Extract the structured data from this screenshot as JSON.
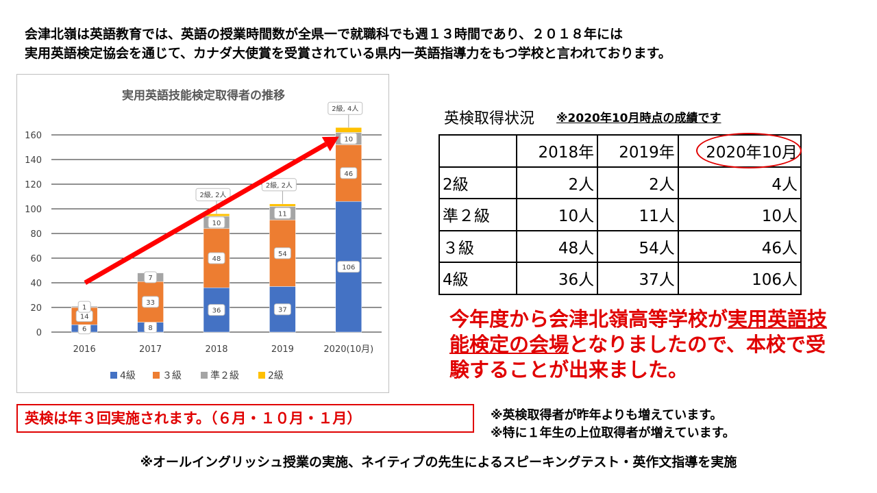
{
  "intro": {
    "line1": "会津北嶺は英語教育では、英語の授業時間数が全県一で就職科でも週１３時間であり、２０１８年には",
    "line2": "実用英語検定協会を通じて、カナダ大使賞を受賞されている県内一英語指導力をもつ学校と言われております。"
  },
  "chart_data": {
    "type": "bar",
    "stacked": true,
    "title": "実用英語技能検定取得者の推移",
    "xlabel": "",
    "ylabel": "",
    "ylim": [
      0,
      160
    ],
    "yticks": [
      0,
      20,
      40,
      60,
      80,
      100,
      120,
      140,
      160
    ],
    "grid": true,
    "legend_position": "bottom",
    "categories": [
      "2016",
      "2017",
      "2018",
      "2019",
      "2020(10月)"
    ],
    "series": [
      {
        "name": "4級",
        "color": "#4472c4",
        "values": [
          6,
          8,
          36,
          37,
          106
        ],
        "labels": [
          "6",
          "8",
          "36",
          "37",
          "106"
        ]
      },
      {
        "name": "３級",
        "color": "#ed7d31",
        "values": [
          14,
          33,
          48,
          54,
          46
        ],
        "labels": [
          "14",
          "33",
          "48",
          "54",
          "46"
        ]
      },
      {
        "name": "準２級",
        "color": "#a5a5a5",
        "values": [
          1,
          7,
          10,
          11,
          10
        ],
        "labels": [
          "1",
          "7",
          "10",
          "11",
          "10"
        ]
      },
      {
        "name": "2級",
        "color": "#ffc000",
        "values": [
          0,
          0,
          2,
          2,
          4
        ],
        "labels": [
          "",
          "",
          "2級, 2人",
          "2級, 2人",
          "2級, 4人"
        ]
      }
    ],
    "arrow": {
      "from": {
        "x": "2016",
        "y": 40
      },
      "to": {
        "x": "2020(10月)",
        "y": 163
      },
      "color": "#ff0000"
    }
  },
  "table": {
    "caption": "英検取得状況",
    "note": "※2020年10月時点の成績です",
    "headers": [
      "",
      "2018年",
      "2019年",
      "2020年10月"
    ],
    "rows": [
      [
        "2級",
        "2人",
        "2人",
        "4人"
      ],
      [
        "準２級",
        "10人",
        "11人",
        "10人"
      ],
      [
        "３級",
        "48人",
        "54人",
        "46人"
      ],
      [
        "4級",
        "36人",
        "37人",
        "106人"
      ]
    ]
  },
  "announce": {
    "part1": "今年度から会津北嶺高等学校が",
    "part2": "実用英語技能検定の会場",
    "part3": "となりましたので、本校で受験することが出来ました。"
  },
  "exam_schedule": "英検は年３回実施されます。（６月・１０月・１月）",
  "notes": {
    "line1": "※英検取得者が昨年よりも増えています。",
    "line2": "※特に１年生の上位取得者が増えています。"
  },
  "footer": "※オールイングリッシュ授業の実施、ネイティブの先生によるスピーキングテスト・英作文指導を実施",
  "colors": {
    "accent_red": "#e00000"
  }
}
